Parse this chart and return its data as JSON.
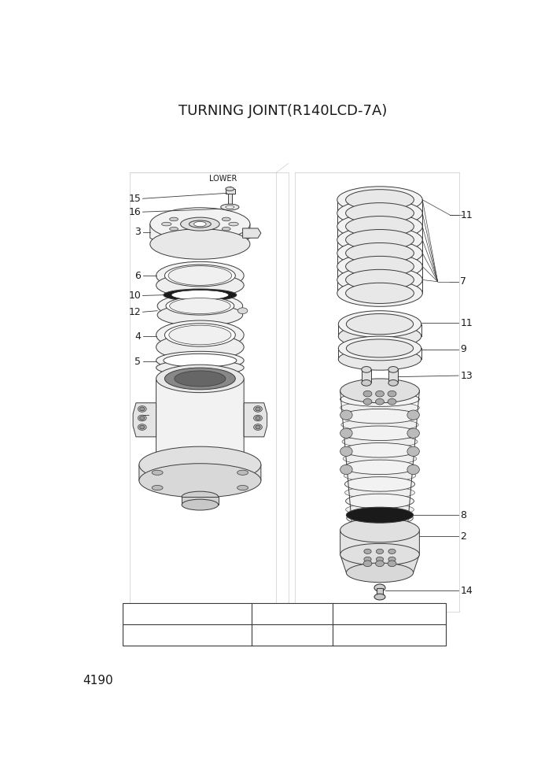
{
  "title": "TURNING JOINT(R140LCD-7A)",
  "page_number": "4190",
  "background_color": "#ffffff",
  "lc": "#3a3a3a",
  "lw": 0.7,
  "fig_w": 7.02,
  "fig_h": 9.92,
  "dpi": 100
}
